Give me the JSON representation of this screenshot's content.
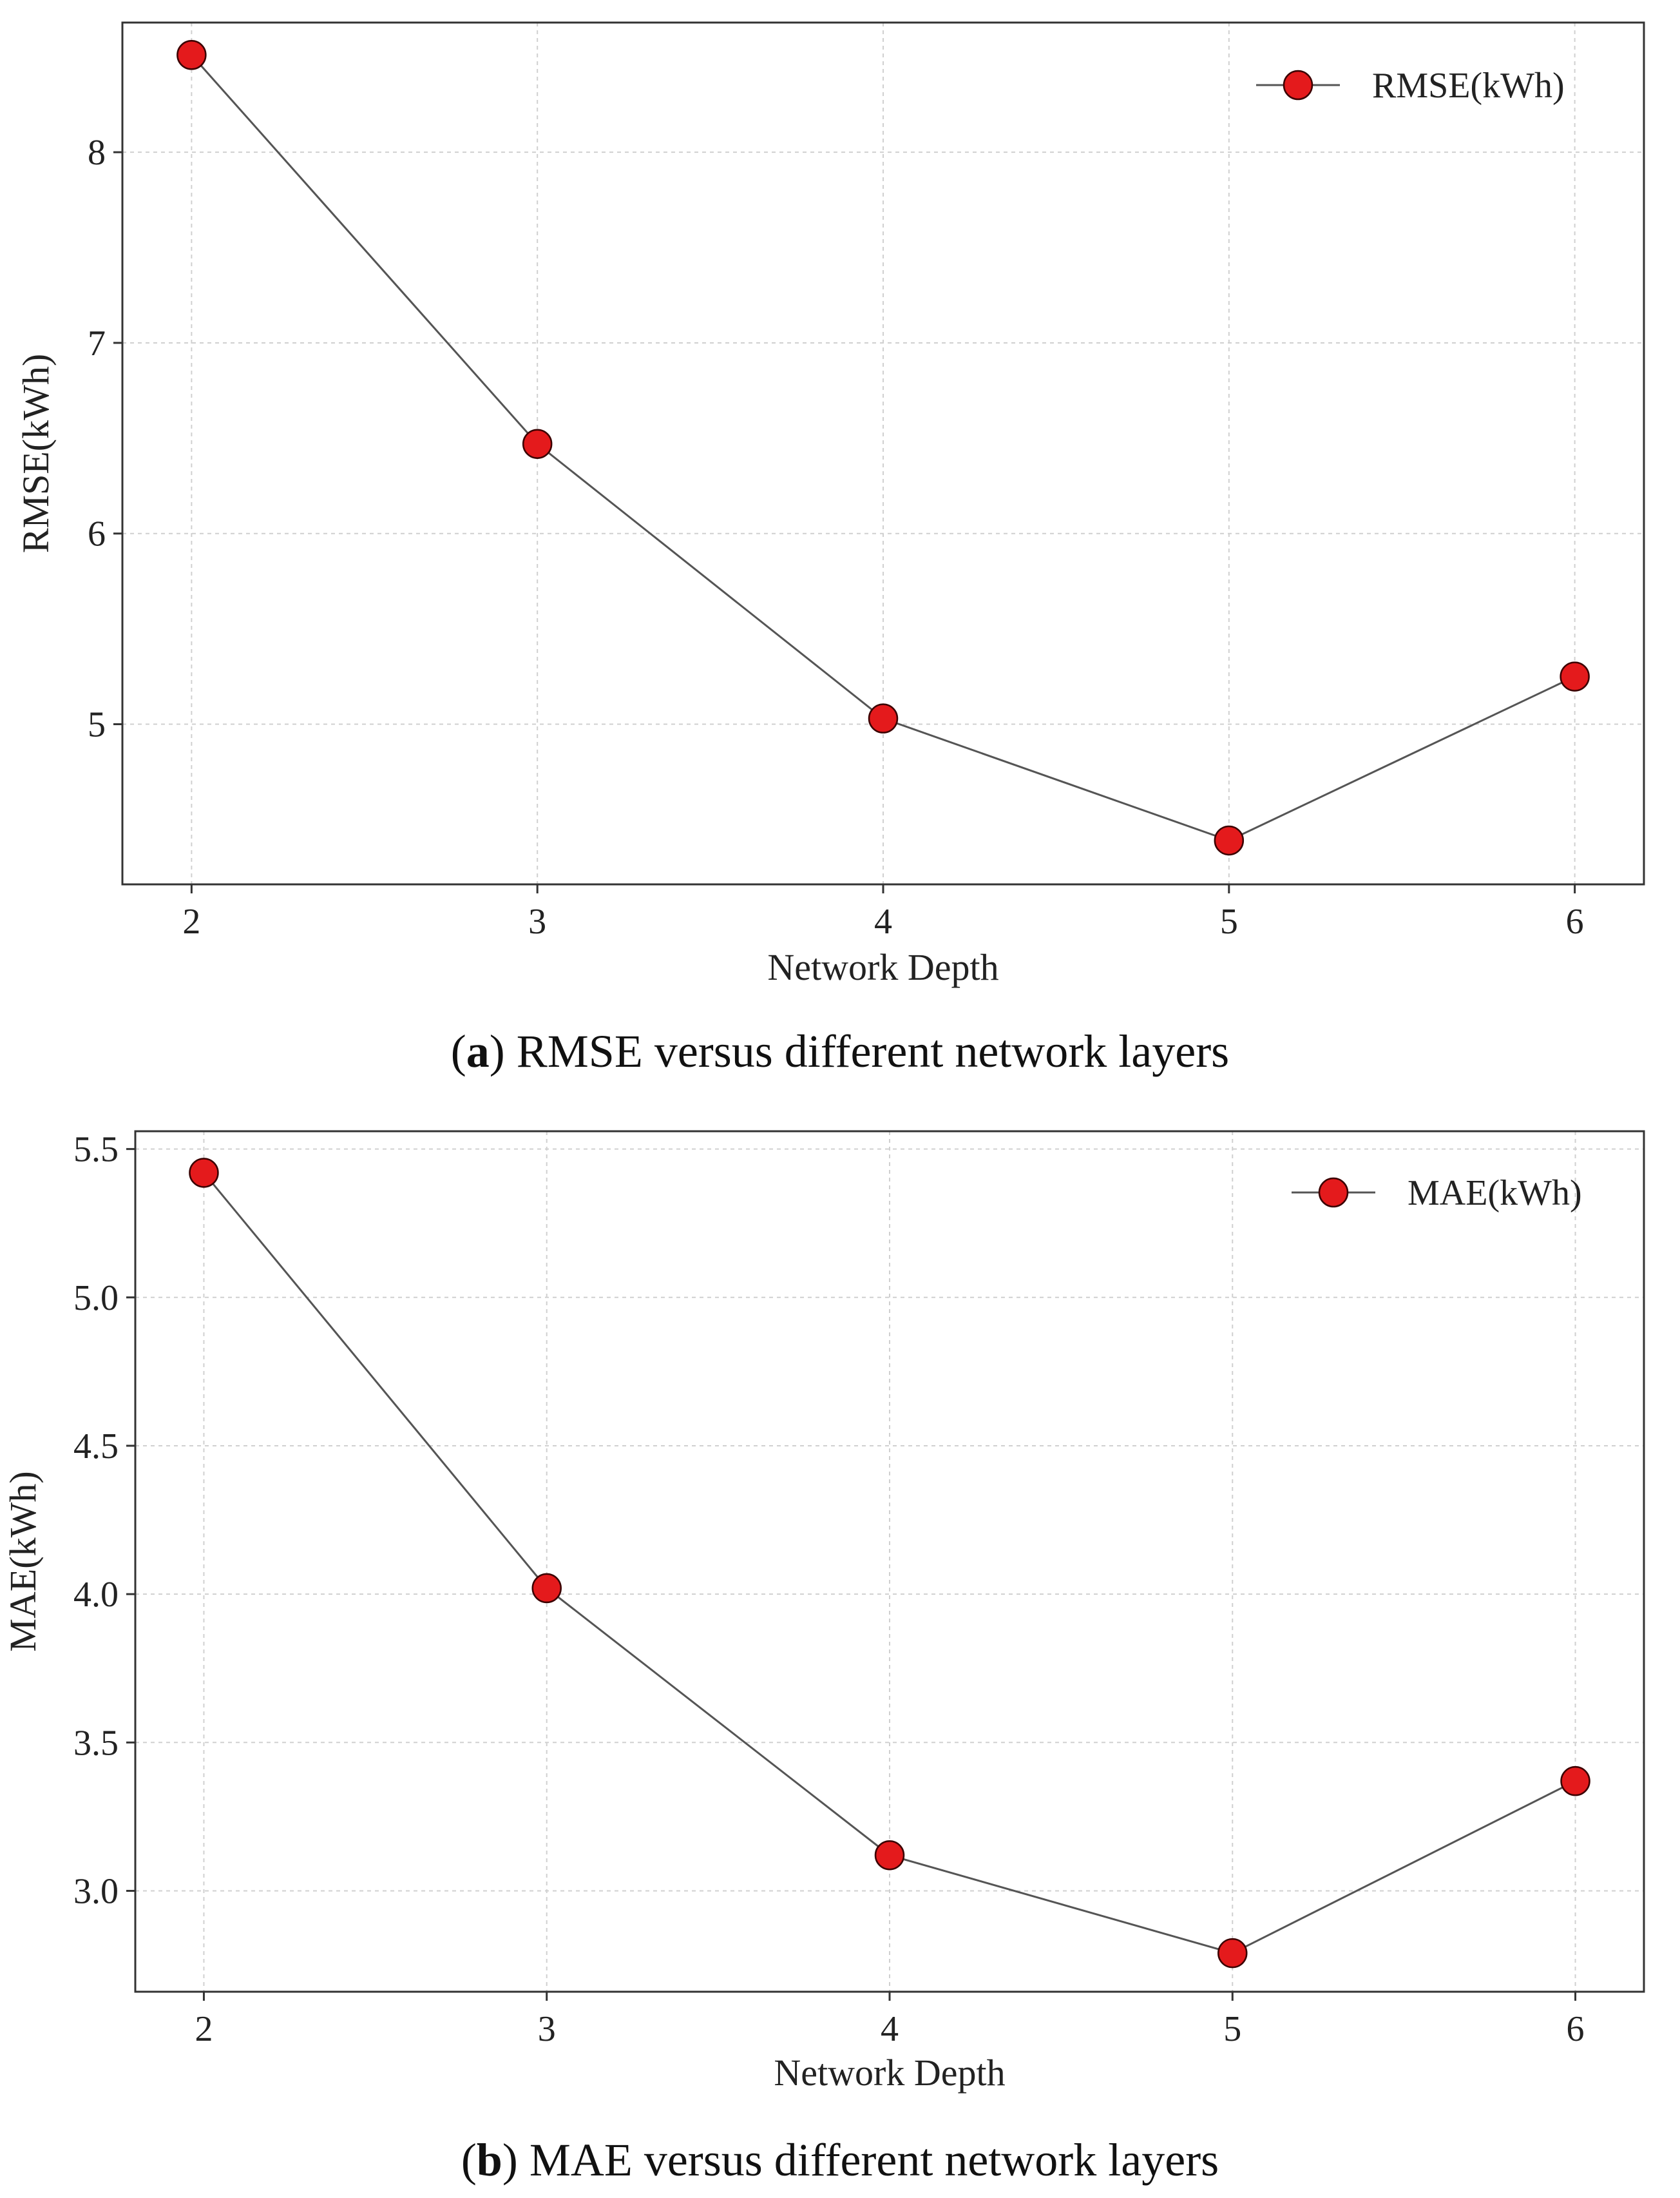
{
  "chart_data": [
    {
      "type": "line",
      "panel": "a",
      "caption_letter": "a",
      "caption_text": ") RMSE versus different network layers",
      "xlabel": "Network Depth",
      "ylabel": "RMSE(kWh)",
      "x": [
        2,
        3,
        4,
        5,
        6
      ],
      "x_ticks": [
        "2",
        "3",
        "4",
        "5",
        "6"
      ],
      "xlim": [
        1.8,
        6.2
      ],
      "y_ticks": [
        "5",
        "6",
        "7",
        "8"
      ],
      "y_tick_values": [
        5,
        6,
        7,
        8
      ],
      "ylim": [
        4.16,
        8.68
      ],
      "series": [
        {
          "name": "RMSE(kWh)",
          "values": [
            8.51,
            6.47,
            5.03,
            4.39,
            5.25
          ]
        }
      ],
      "legend_position": "top-right",
      "grid": true,
      "line_color": "#555555",
      "marker_color": "#e41a1c"
    },
    {
      "type": "line",
      "panel": "b",
      "caption_letter": "b",
      "caption_text": ") MAE versus different network layers",
      "xlabel": "Network Depth",
      "ylabel": "MAE(kWh)",
      "x": [
        2,
        3,
        4,
        5,
        6
      ],
      "x_ticks": [
        "2",
        "3",
        "4",
        "5",
        "6"
      ],
      "xlim": [
        1.8,
        6.2
      ],
      "y_ticks": [
        "3.0",
        "3.5",
        "4.0",
        "4.5",
        "5.0",
        "5.5"
      ],
      "y_tick_values": [
        3.0,
        3.5,
        4.0,
        4.5,
        5.0,
        5.5
      ],
      "ylim": [
        2.66,
        5.56
      ],
      "series": [
        {
          "name": "MAE(kWh)",
          "values": [
            5.42,
            4.02,
            3.12,
            2.79,
            3.37
          ]
        }
      ],
      "legend_position": "top-right",
      "grid": true,
      "line_color": "#555555",
      "marker_color": "#e41a1c"
    }
  ]
}
